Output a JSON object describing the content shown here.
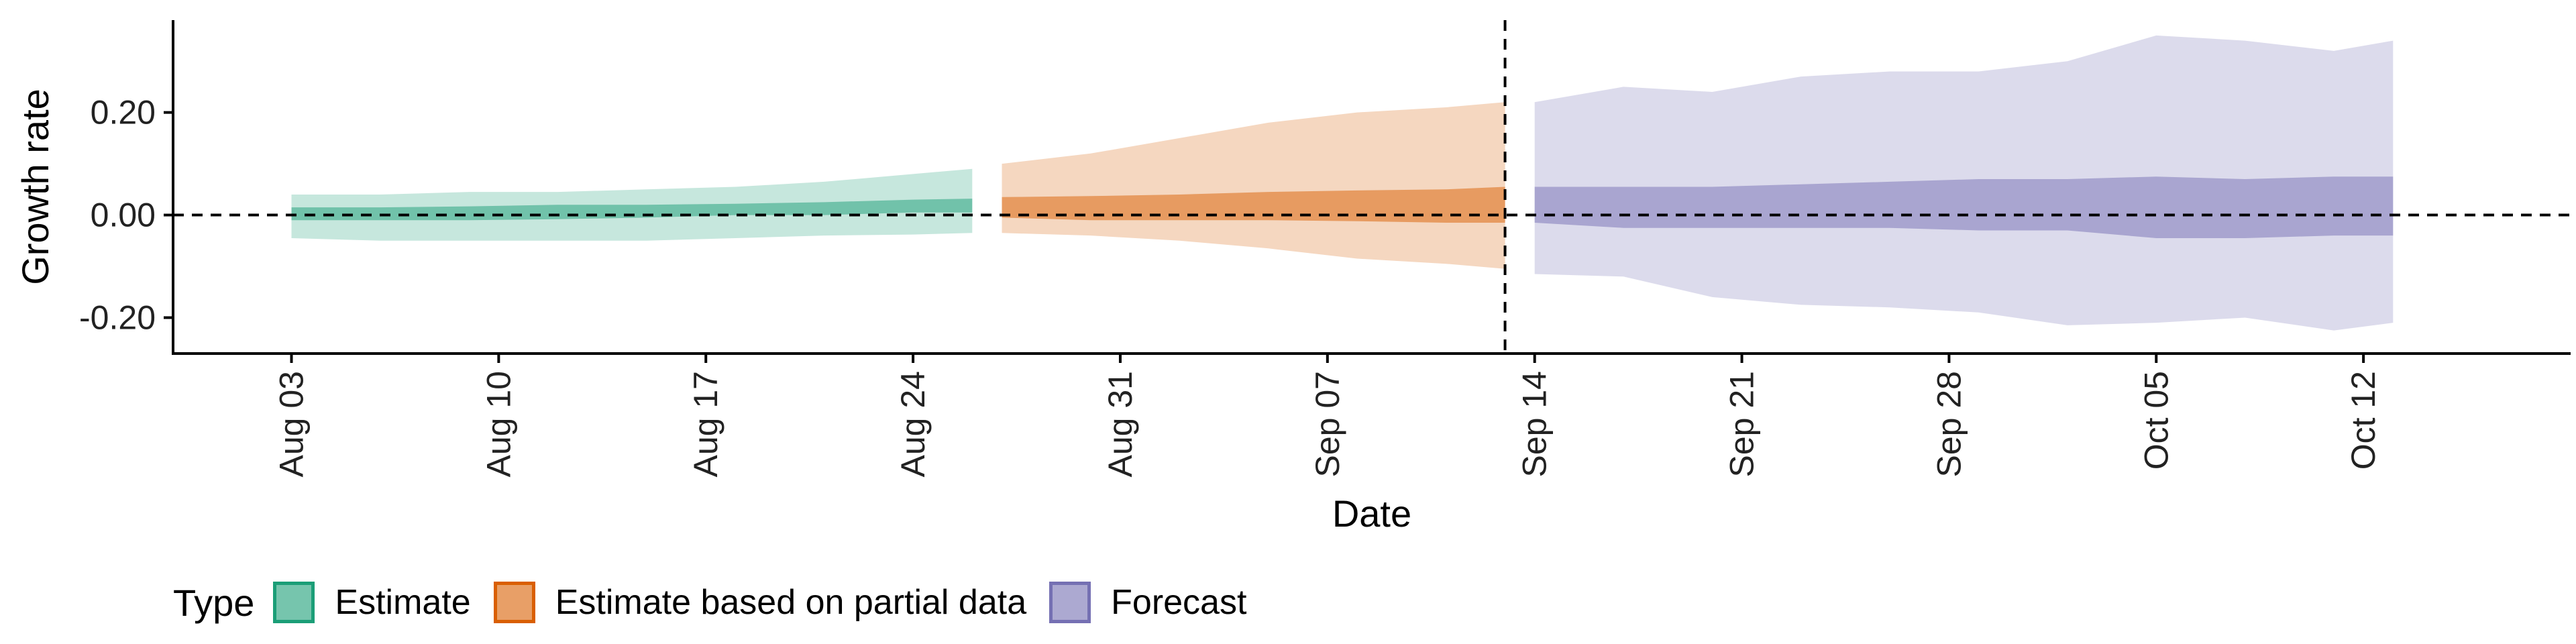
{
  "chart_data": {
    "type": "area",
    "xlabel": "Date",
    "ylabel": "Growth rate",
    "x_ticks": [
      "Aug 03",
      "Aug 10",
      "Aug 17",
      "Aug 24",
      "Aug 31",
      "Sep 07",
      "Sep 14",
      "Sep 21",
      "Sep 28",
      "Oct 05",
      "Oct 12"
    ],
    "y_ticks": [
      "-0.20",
      "0.00",
      "0.20"
    ],
    "xlim": [
      "2020-07-30",
      "2020-10-19"
    ],
    "ylim": [
      -0.27,
      0.38
    ],
    "reference_lines": [
      {
        "axis": "y",
        "value": 0,
        "style": "dashed"
      },
      {
        "axis": "x",
        "value": "2020-09-13",
        "style": "dashed"
      }
    ],
    "legend": {
      "title": "Type",
      "position": "bottom"
    },
    "series": [
      {
        "name": "Estimate",
        "color": "#1b9e77",
        "x": [
          "2020-08-03",
          "2020-08-06",
          "2020-08-09",
          "2020-08-12",
          "2020-08-15",
          "2020-08-18",
          "2020-08-21",
          "2020-08-24",
          "2020-08-26"
        ],
        "lower90": [
          -0.045,
          -0.05,
          -0.05,
          -0.05,
          -0.05,
          -0.045,
          -0.04,
          -0.038,
          -0.035
        ],
        "upper90": [
          0.04,
          0.04,
          0.045,
          0.045,
          0.05,
          0.055,
          0.065,
          0.08,
          0.09
        ],
        "lower50": [
          -0.01,
          -0.01,
          -0.01,
          -0.008,
          -0.005,
          0.0,
          0.0,
          0.005,
          0.005
        ],
        "upper50": [
          0.015,
          0.015,
          0.017,
          0.02,
          0.02,
          0.022,
          0.025,
          0.03,
          0.032
        ]
      },
      {
        "name": "Estimate based on partial data",
        "color": "#d95f02",
        "x": [
          "2020-08-27",
          "2020-08-30",
          "2020-09-02",
          "2020-09-05",
          "2020-09-08",
          "2020-09-11",
          "2020-09-13"
        ],
        "lower90": [
          -0.035,
          -0.04,
          -0.05,
          -0.065,
          -0.085,
          -0.095,
          -0.105
        ],
        "upper90": [
          0.1,
          0.12,
          0.15,
          0.18,
          0.2,
          0.21,
          0.22
        ],
        "lower50": [
          -0.005,
          -0.01,
          -0.01,
          -0.01,
          -0.012,
          -0.015,
          -0.015
        ],
        "upper50": [
          0.035,
          0.037,
          0.04,
          0.045,
          0.048,
          0.05,
          0.055
        ]
      },
      {
        "name": "Forecast",
        "color": "#7570b3",
        "x": [
          "2020-09-14",
          "2020-09-17",
          "2020-09-20",
          "2020-09-23",
          "2020-09-26",
          "2020-09-29",
          "2020-10-02",
          "2020-10-05",
          "2020-10-08",
          "2020-10-11",
          "2020-10-13"
        ],
        "lower90": [
          -0.115,
          -0.12,
          -0.16,
          -0.175,
          -0.18,
          -0.19,
          -0.215,
          -0.21,
          -0.2,
          -0.225,
          -0.21
        ],
        "upper90": [
          0.22,
          0.25,
          0.24,
          0.27,
          0.28,
          0.28,
          0.3,
          0.35,
          0.34,
          0.32,
          0.34
        ],
        "lower50": [
          -0.015,
          -0.025,
          -0.025,
          -0.025,
          -0.025,
          -0.03,
          -0.03,
          -0.045,
          -0.045,
          -0.04,
          -0.04
        ],
        "upper50": [
          0.055,
          0.055,
          0.055,
          0.06,
          0.065,
          0.07,
          0.07,
          0.075,
          0.07,
          0.075,
          0.075
        ]
      }
    ]
  }
}
